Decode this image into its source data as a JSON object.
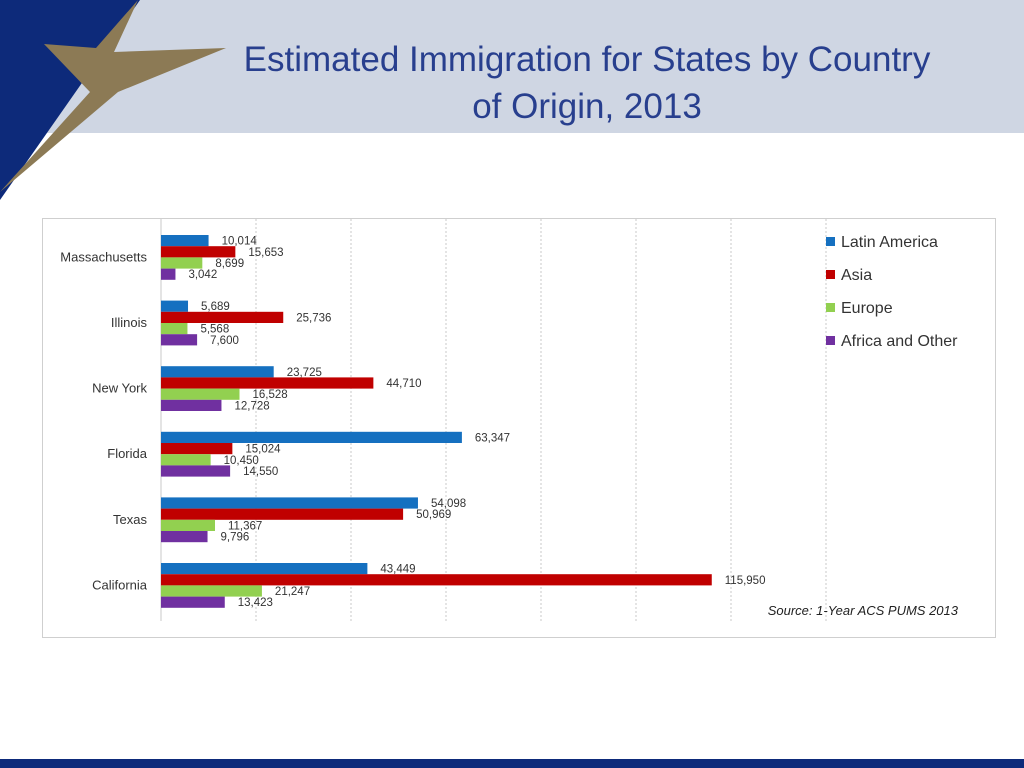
{
  "slide": {
    "title_line1": "Estimated Immigration for States by Country",
    "title_line2": "of Origin, 2013",
    "colors": {
      "header_band": "#cfd6e3",
      "navy": "#0d2a7a",
      "star_gold": "#8c7a55",
      "title": "#283f8e"
    }
  },
  "chart_data": {
    "type": "bar",
    "orientation": "horizontal",
    "title": "Estimated Immigration for States by Country of Origin, 2013",
    "categories": [
      "Massachusetts",
      "Illinois",
      "New York",
      "Florida",
      "Texas",
      "California"
    ],
    "series": [
      {
        "name": "Latin America",
        "color": "#1570c0",
        "values": [
          10014,
          5689,
          23725,
          63347,
          54098,
          43449
        ],
        "labels": [
          "10,014",
          "5,689",
          "23,725",
          "63,347",
          "54,098",
          "43,449"
        ]
      },
      {
        "name": "Asia",
        "color": "#c00000",
        "values": [
          15653,
          25736,
          44710,
          15024,
          50969,
          115950
        ],
        "labels": [
          "15,653",
          "25,736",
          "44,710",
          "15,024",
          "50,969",
          "115,950"
        ]
      },
      {
        "name": "Europe",
        "color": "#92d050",
        "values": [
          8699,
          5568,
          16528,
          10450,
          11367,
          21247
        ],
        "labels": [
          "8,699",
          "5,568",
          "16,528",
          "10,450",
          "11,367",
          "21,247"
        ]
      },
      {
        "name": "Africa and Other",
        "color": "#7030a0",
        "values": [
          3042,
          7600,
          12728,
          14550,
          9796,
          13423
        ],
        "labels": [
          "3,042",
          "7,600",
          "12,728",
          "14,550",
          "9,796",
          "13,423"
        ]
      }
    ],
    "xlim": [
      0,
      140000
    ],
    "grid": true,
    "legend": "top-right",
    "source_note": "Source: 1-Year ACS PUMS 2013"
  }
}
